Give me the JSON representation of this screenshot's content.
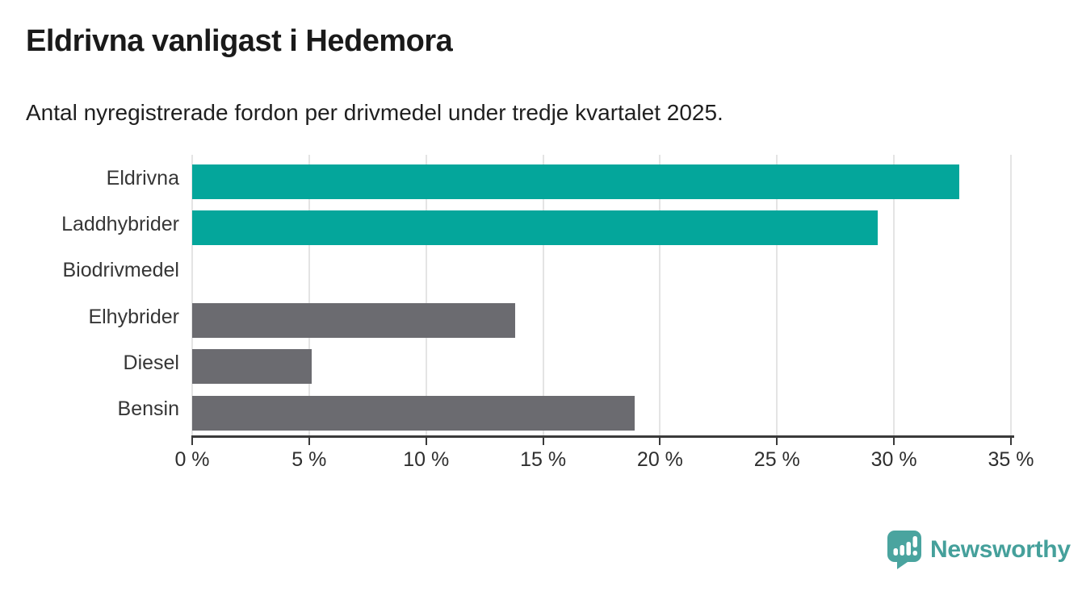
{
  "branding": {
    "name": "Newsworthy",
    "logo_icon": "newsworthy-speech-bubble-chart-icon",
    "color": "#45a09b"
  },
  "chart_data": {
    "type": "bar",
    "orientation": "horizontal",
    "title": "Eldrivna vanligast i Hedemora",
    "subtitle": "Antal nyregistrerade fordon per drivmedel under tredje kvartalet 2025.",
    "categories": [
      "Eldrivna",
      "Laddhybrider",
      "Biodrivmedel",
      "Elhybrider",
      "Diesel",
      "Bensin"
    ],
    "values": [
      32.8,
      29.3,
      0,
      13.8,
      5.1,
      18.9
    ],
    "unit": "%",
    "xlabel": "",
    "ylabel": "",
    "xlim": [
      0,
      35
    ],
    "x_tick_values": [
      0,
      5,
      10,
      15,
      20,
      25,
      30,
      35
    ],
    "x_tick_labels": [
      "0 %",
      "5 %",
      "10 %",
      "15 %",
      "20 %",
      "25 %",
      "30 %",
      "35 %"
    ],
    "bar_colors": [
      "#04a69b",
      "#04a69b",
      "#6b6b70",
      "#6b6b70",
      "#6b6b70",
      "#6b6b70"
    ],
    "highlight_color": "#04a69b",
    "default_color": "#6b6b70",
    "gridline_color": "#e4e4e4",
    "axis_color": "#3a3a3a",
    "grid": true,
    "legend": false
  }
}
